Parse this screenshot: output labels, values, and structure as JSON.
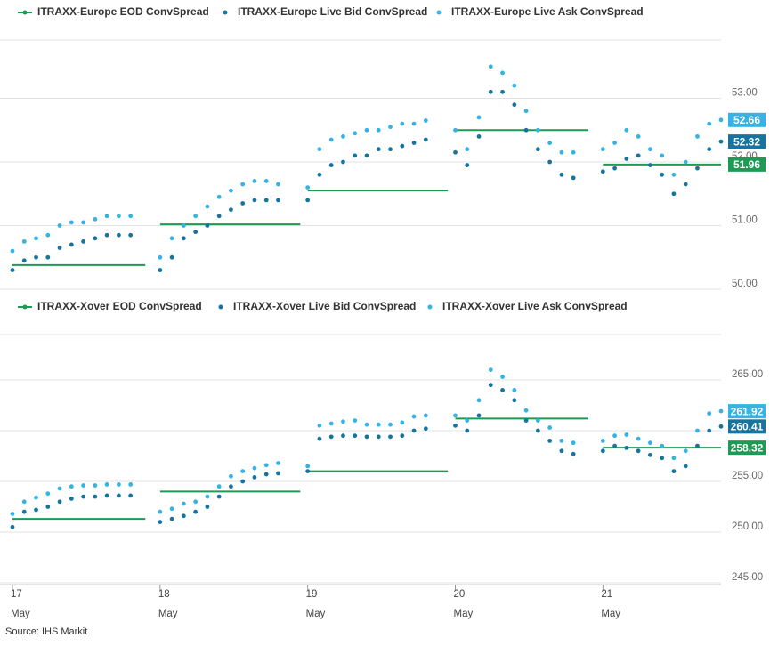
{
  "chart_data": [
    {
      "type": "line",
      "xlim": [
        17,
        21.8
      ],
      "ylim": [
        50,
        54
      ],
      "yticks": [
        {
          "value": 53,
          "label": "53.00"
        },
        {
          "value": 52,
          "label": "52.00"
        },
        {
          "value": 51,
          "label": "51.00"
        },
        {
          "value": 50,
          "label": "50.00"
        }
      ],
      "grid": true,
      "x": [
        17,
        17.08,
        17.16,
        17.24,
        17.32,
        17.4,
        17.48,
        17.56,
        17.64,
        17.72,
        17.8,
        18,
        18.08,
        18.16,
        18.24,
        18.32,
        18.4,
        18.48,
        18.56,
        18.64,
        18.72,
        18.8,
        19,
        19.08,
        19.16,
        19.24,
        19.32,
        19.4,
        19.48,
        19.56,
        19.64,
        19.72,
        19.8,
        20,
        20.08,
        20.16,
        20.24,
        20.32,
        20.4,
        20.48,
        20.56,
        20.64,
        20.72,
        20.8,
        21,
        21.08,
        21.16,
        21.24,
        21.32,
        21.4,
        21.48,
        21.56,
        21.64,
        21.72,
        21.8
      ],
      "series": [
        {
          "name": "ITRAXX-Europe EOD ConvSpread",
          "color": "#1f9a55",
          "mode": "line",
          "x": [
            17,
            17.9,
            17.95,
            18,
            18.95,
            18.97,
            19,
            19.95,
            19.97,
            20,
            20.9,
            20.95,
            21,
            21.8
          ],
          "values": [
            50.38,
            50.38,
            null,
            51.02,
            51.02,
            null,
            51.55,
            51.55,
            null,
            52.5,
            52.5,
            null,
            51.96,
            51.96
          ]
        },
        {
          "name": "ITRAXX-Europe Live Bid ConvSpread",
          "color": "#17749e",
          "mode": "markers",
          "values": [
            50.3,
            50.45,
            50.5,
            50.5,
            50.65,
            50.7,
            50.75,
            50.8,
            50.85,
            50.85,
            50.85,
            50.3,
            50.5,
            50.8,
            50.9,
            51.0,
            51.15,
            51.25,
            51.35,
            51.4,
            51.4,
            51.4,
            51.4,
            51.8,
            51.95,
            52.0,
            52.1,
            52.1,
            52.2,
            52.2,
            52.25,
            52.3,
            52.35,
            52.15,
            51.95,
            52.4,
            53.1,
            53.1,
            52.9,
            52.5,
            52.2,
            52.0,
            51.8,
            51.75,
            51.85,
            51.9,
            52.05,
            52.1,
            51.95,
            51.8,
            51.5,
            51.65,
            51.9,
            52.2,
            52.32
          ]
        },
        {
          "name": "ITRAXX-Europe Live Ask ConvSpread",
          "color": "#34b3e4",
          "mode": "markers",
          "values": [
            50.6,
            50.75,
            50.8,
            50.85,
            51.0,
            51.05,
            51.05,
            51.1,
            51.15,
            51.15,
            51.15,
            50.5,
            50.8,
            51.0,
            51.15,
            51.3,
            51.45,
            51.55,
            51.65,
            51.7,
            51.7,
            51.65,
            51.6,
            52.2,
            52.35,
            52.4,
            52.45,
            52.5,
            52.5,
            52.55,
            52.6,
            52.6,
            52.65,
            52.5,
            52.2,
            52.7,
            53.5,
            53.4,
            53.2,
            52.8,
            52.5,
            52.3,
            52.15,
            52.15,
            52.2,
            52.3,
            52.5,
            52.4,
            52.2,
            52.1,
            51.8,
            52.0,
            52.4,
            52.6,
            52.66
          ]
        }
      ]
    },
    {
      "type": "line",
      "xlim": [
        17,
        21.8
      ],
      "xticks": [
        {
          "value": 17,
          "label": "17\nMay"
        },
        {
          "value": 18,
          "label": "18\nMay"
        },
        {
          "value": 19,
          "label": "19\nMay"
        },
        {
          "value": 20,
          "label": "20\nMay"
        },
        {
          "value": 21,
          "label": "21\nMay"
        }
      ],
      "ylim": [
        245,
        270
      ],
      "yticks": [
        {
          "value": 265,
          "label": "265.00"
        },
        {
          "value": 260,
          "label": "260.00"
        },
        {
          "value": 255,
          "label": "255.00"
        },
        {
          "value": 250,
          "label": "250.00"
        },
        {
          "value": 245,
          "label": "245.00"
        }
      ],
      "grid": true,
      "x": [
        17,
        17.08,
        17.16,
        17.24,
        17.32,
        17.4,
        17.48,
        17.56,
        17.64,
        17.72,
        17.8,
        18,
        18.08,
        18.16,
        18.24,
        18.32,
        18.4,
        18.48,
        18.56,
        18.64,
        18.72,
        18.8,
        19,
        19.08,
        19.16,
        19.24,
        19.32,
        19.4,
        19.48,
        19.56,
        19.64,
        19.72,
        19.8,
        20,
        20.08,
        20.16,
        20.24,
        20.32,
        20.4,
        20.48,
        20.56,
        20.64,
        20.72,
        20.8,
        21,
        21.08,
        21.16,
        21.24,
        21.32,
        21.4,
        21.48,
        21.56,
        21.64,
        21.72,
        21.8
      ],
      "series": [
        {
          "name": "ITRAXX-Xover EOD ConvSpread",
          "color": "#1f9a55",
          "mode": "line",
          "x": [
            17,
            17.9,
            17.95,
            18,
            18.95,
            18.97,
            19,
            19.95,
            19.97,
            20,
            20.9,
            20.95,
            21,
            21.8
          ],
          "values": [
            251.3,
            251.3,
            null,
            254.0,
            254.0,
            null,
            256.0,
            256.0,
            null,
            261.2,
            261.2,
            null,
            258.32,
            258.32
          ]
        },
        {
          "name": "ITRAXX-Xover Live Bid ConvSpread",
          "color": "#17749e",
          "mode": "markers",
          "values": [
            250.5,
            252.0,
            252.2,
            252.5,
            253.0,
            253.3,
            253.5,
            253.5,
            253.6,
            253.6,
            253.6,
            251.0,
            251.3,
            251.6,
            252.0,
            252.5,
            253.5,
            254.5,
            255.0,
            255.4,
            255.7,
            255.8,
            256.0,
            259.2,
            259.4,
            259.5,
            259.5,
            259.4,
            259.4,
            259.4,
            259.5,
            260.0,
            260.2,
            260.5,
            260.0,
            261.5,
            264.5,
            264.0,
            263.0,
            261.0,
            260.0,
            259.0,
            258.0,
            257.7,
            258.0,
            258.5,
            258.3,
            258.0,
            257.6,
            257.3,
            256.0,
            256.5,
            258.5,
            260.0,
            260.41
          ]
        },
        {
          "name": "ITRAXX-Xover Live Ask ConvSpread",
          "color": "#34b3e4",
          "mode": "markers",
          "values": [
            251.8,
            253.0,
            253.4,
            253.8,
            254.3,
            254.5,
            254.6,
            254.6,
            254.7,
            254.7,
            254.7,
            252.0,
            252.3,
            252.8,
            253.0,
            253.5,
            254.5,
            255.5,
            256.0,
            256.3,
            256.6,
            256.8,
            256.5,
            260.5,
            260.7,
            260.9,
            261.0,
            260.6,
            260.6,
            260.6,
            260.8,
            261.4,
            261.5,
            261.5,
            261.0,
            263.0,
            266.0,
            265.3,
            264.0,
            262.0,
            261.0,
            260.3,
            259.0,
            258.8,
            259.0,
            259.5,
            259.6,
            259.2,
            258.8,
            258.5,
            257.3,
            258.0,
            260.0,
            261.7,
            261.92
          ]
        }
      ]
    }
  ],
  "source": "Source: IHS  Markit"
}
